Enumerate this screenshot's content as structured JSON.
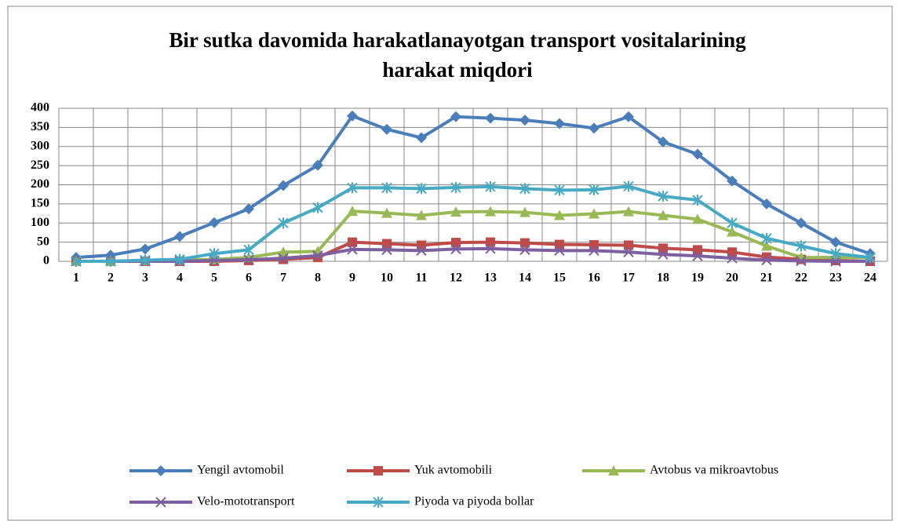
{
  "chart_data": {
    "type": "line",
    "title": "Bir sutka davomida harakatlanayotgan transport vositalarining harakat miqdori",
    "categories": [
      "1",
      "2",
      "3",
      "4",
      "5",
      "6",
      "7",
      "8",
      "9",
      "10",
      "11",
      "12",
      "13",
      "14",
      "15",
      "16",
      "17",
      "18",
      "19",
      "20",
      "21",
      "22",
      "23",
      "24"
    ],
    "ylim": [
      0,
      400
    ],
    "yticks": [
      0,
      50,
      100,
      150,
      200,
      250,
      300,
      350,
      400
    ],
    "grid": true,
    "legend": "bottom",
    "series": [
      {
        "name": "Yengil avtomobil",
        "color": "#4a7ebb",
        "marker": "diamond",
        "values": [
          10,
          16,
          32,
          65,
          101,
          137,
          198,
          251,
          380,
          345,
          323,
          378,
          374,
          369,
          360,
          348,
          378,
          312,
          280,
          210,
          150,
          100,
          50,
          20
        ]
      },
      {
        "name": "Yuk avtomobili",
        "color": "#be4b48",
        "marker": "square",
        "values": [
          0,
          0,
          0,
          0,
          0,
          2,
          5,
          10,
          50,
          46,
          42,
          49,
          50,
          48,
          44,
          43,
          42,
          34,
          30,
          24,
          11,
          5,
          2,
          0
        ]
      },
      {
        "name": "Avtobus va mikroavtobus",
        "color": "#98b954",
        "marker": "triangle",
        "values": [
          0,
          0,
          2,
          3,
          5,
          10,
          24,
          26,
          131,
          126,
          120,
          129,
          130,
          128,
          120,
          124,
          130,
          120,
          110,
          77,
          40,
          10,
          10,
          10
        ]
      },
      {
        "name": "Velo-mototransport",
        "color": "#7d60a0",
        "marker": "x",
        "values": [
          0,
          0,
          0,
          0,
          2,
          4,
          8,
          15,
          31,
          30,
          28,
          32,
          33,
          30,
          28,
          28,
          24,
          18,
          14,
          8,
          3,
          1,
          0,
          0
        ]
      },
      {
        "name": "Piyoda va piyoda bollar",
        "color": "#46aac5",
        "marker": "star",
        "values": [
          0,
          0,
          3,
          5,
          20,
          30,
          100,
          140,
          192,
          192,
          190,
          193,
          195,
          190,
          186,
          187,
          196,
          170,
          160,
          100,
          60,
          40,
          20,
          10
        ]
      }
    ]
  }
}
